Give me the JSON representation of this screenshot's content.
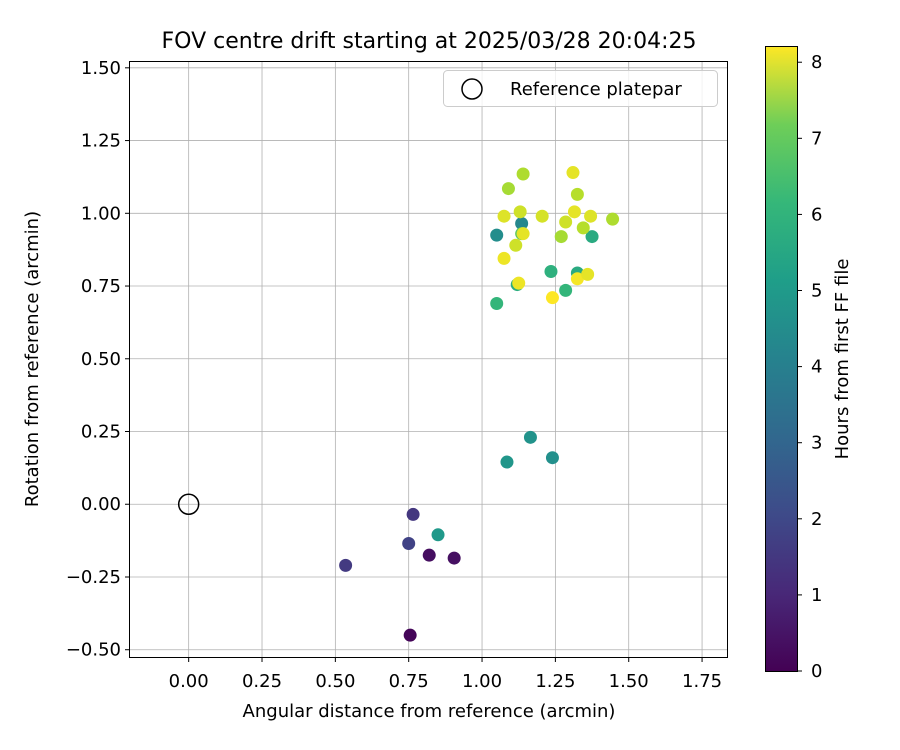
{
  "chart_data": {
    "type": "scatter",
    "title": "FOV centre drift starting at 2025/03/28 20:04:25",
    "xlabel": "Angular distance from reference (arcmin)",
    "ylabel": "Rotation from reference (arcmin)",
    "xlim": [
      -0.2,
      1.835
    ],
    "ylim": [
      -0.525,
      1.52
    ],
    "grid": true,
    "legend_position": "top-right",
    "x_ticks": [
      "0.00",
      "0.25",
      "0.50",
      "0.75",
      "1.00",
      "1.25",
      "1.50",
      "1.75"
    ],
    "y_ticks": [
      "−0.50",
      "−0.25",
      "0.00",
      "0.25",
      "0.50",
      "0.75",
      "1.00",
      "1.25",
      "1.50"
    ],
    "reference": {
      "x": 0.0,
      "y": 0.0,
      "legend_label": "Reference platepar"
    },
    "colorbar": {
      "label": "Hours from first FF file",
      "range": [
        0,
        8.2
      ],
      "ticks": [
        "0",
        "1",
        "2",
        "3",
        "4",
        "5",
        "6",
        "7",
        "8"
      ],
      "colormap": "viridis"
    },
    "points": [
      {
        "x": 0.755,
        "y": -0.45,
        "hours": 0.1
      },
      {
        "x": 0.82,
        "y": -0.175,
        "hours": 0.3
      },
      {
        "x": 0.905,
        "y": -0.185,
        "hours": 0.35
      },
      {
        "x": 0.535,
        "y": -0.21,
        "hours": 1.4
      },
      {
        "x": 0.75,
        "y": -0.135,
        "hours": 1.6
      },
      {
        "x": 0.765,
        "y": -0.035,
        "hours": 1.3
      },
      {
        "x": 0.85,
        "y": -0.105,
        "hours": 4.4
      },
      {
        "x": 1.085,
        "y": 0.145,
        "hours": 4.3
      },
      {
        "x": 1.165,
        "y": 0.23,
        "hours": 4.2
      },
      {
        "x": 1.24,
        "y": 0.16,
        "hours": 4.1
      },
      {
        "x": 1.05,
        "y": 0.925,
        "hours": 4.0
      },
      {
        "x": 1.135,
        "y": 0.965,
        "hours": 3.8
      },
      {
        "x": 1.05,
        "y": 0.69,
        "hours": 5.4
      },
      {
        "x": 1.12,
        "y": 0.755,
        "hours": 5.1
      },
      {
        "x": 1.235,
        "y": 0.8,
        "hours": 5.2
      },
      {
        "x": 1.285,
        "y": 0.735,
        "hours": 5.4
      },
      {
        "x": 1.325,
        "y": 0.795,
        "hours": 5.0
      },
      {
        "x": 1.375,
        "y": 0.92,
        "hours": 5.0
      },
      {
        "x": 1.135,
        "y": 0.93,
        "hours": 6.1
      },
      {
        "x": 1.09,
        "y": 1.085,
        "hours": 7.1
      },
      {
        "x": 1.14,
        "y": 1.135,
        "hours": 7.2
      },
      {
        "x": 1.325,
        "y": 1.065,
        "hours": 7.3
      },
      {
        "x": 1.345,
        "y": 0.95,
        "hours": 7.3
      },
      {
        "x": 1.27,
        "y": 0.92,
        "hours": 7.1
      },
      {
        "x": 1.445,
        "y": 0.98,
        "hours": 7.2
      },
      {
        "x": 1.075,
        "y": 0.99,
        "hours": 7.8
      },
      {
        "x": 1.13,
        "y": 1.005,
        "hours": 7.6
      },
      {
        "x": 1.205,
        "y": 0.99,
        "hours": 7.7
      },
      {
        "x": 1.285,
        "y": 0.97,
        "hours": 7.6
      },
      {
        "x": 1.315,
        "y": 1.005,
        "hours": 7.9
      },
      {
        "x": 1.37,
        "y": 0.99,
        "hours": 7.8
      },
      {
        "x": 1.31,
        "y": 1.14,
        "hours": 7.9
      },
      {
        "x": 1.115,
        "y": 0.89,
        "hours": 7.6
      },
      {
        "x": 1.075,
        "y": 0.845,
        "hours": 8.0
      },
      {
        "x": 1.125,
        "y": 0.76,
        "hours": 8.0
      },
      {
        "x": 1.24,
        "y": 0.71,
        "hours": 8.2
      },
      {
        "x": 1.325,
        "y": 0.775,
        "hours": 8.1
      },
      {
        "x": 1.36,
        "y": 0.79,
        "hours": 7.9
      },
      {
        "x": 1.14,
        "y": 0.93,
        "hours": 7.9
      }
    ]
  }
}
